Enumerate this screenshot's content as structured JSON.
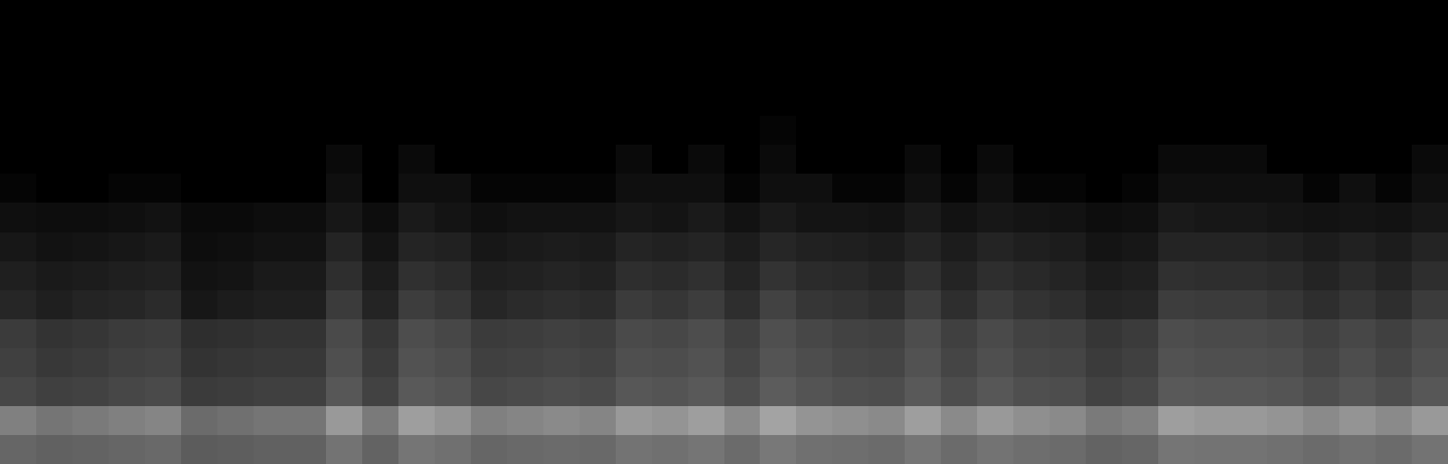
{
  "chart_data": {
    "type": "heatmap",
    "tick_labels": false,
    "color": "#ffffff",
    "color_range": [
      0,
      1
    ],
    "cells": [
      [
        0,
        0,
        0,
        0,
        0,
        0,
        0,
        0,
        0,
        0,
        0,
        0,
        0,
        0,
        0,
        0,
        0,
        0,
        0,
        0,
        0,
        0,
        0,
        0,
        0,
        0,
        0,
        0,
        0,
        0,
        0,
        0,
        0,
        0,
        0,
        0,
        0,
        0,
        0,
        0
      ],
      [
        0,
        0,
        0,
        0,
        0,
        0,
        0,
        0,
        0,
        0,
        0,
        0,
        0,
        0,
        0,
        0,
        0,
        0,
        0,
        0,
        0,
        0,
        0,
        0,
        0,
        0,
        0,
        0,
        0,
        0,
        0,
        0,
        0,
        0,
        0,
        0,
        0,
        0,
        0,
        0
      ],
      [
        0,
        0,
        0,
        0,
        0,
        0,
        0,
        0,
        0,
        0,
        0,
        0,
        0,
        0,
        0,
        0,
        0,
        0,
        0,
        0,
        0,
        0,
        0,
        0,
        0,
        0,
        0,
        0,
        0,
        0,
        0,
        0,
        0,
        0,
        0,
        0,
        0,
        0,
        0,
        0
      ],
      [
        0,
        0,
        0,
        0,
        0,
        0,
        0,
        0,
        0,
        0,
        0,
        0,
        0,
        0,
        0,
        0,
        0,
        0,
        0,
        0,
        0,
        0,
        0,
        0,
        0,
        0,
        0,
        0,
        0,
        0,
        0,
        0,
        0,
        0,
        0,
        0,
        0,
        0,
        0,
        0
      ],
      [
        0,
        0,
        0,
        0,
        0,
        0,
        0,
        0,
        0,
        0,
        0,
        0,
        0,
        0,
        0,
        0,
        0,
        0,
        0,
        0,
        0,
        0.02,
        0,
        0,
        0,
        0,
        0,
        0,
        0,
        0,
        0,
        0,
        0,
        0,
        0,
        0,
        0,
        0,
        0,
        0
      ],
      [
        0,
        0,
        0,
        0,
        0,
        0,
        0,
        0,
        0,
        0.04,
        0,
        0.04,
        0,
        0,
        0,
        0,
        0,
        0.04,
        0,
        0.04,
        0,
        0.04,
        0,
        0,
        0,
        0.04,
        0,
        0.04,
        0,
        0,
        0,
        0,
        0.04,
        0.04,
        0.04,
        0,
        0,
        0,
        0,
        0.04
      ],
      [
        0.02,
        0,
        0,
        0.02,
        0.02,
        0,
        0,
        0,
        0,
        0.06,
        0,
        0.06,
        0.06,
        0.02,
        0.02,
        0.02,
        0.02,
        0.06,
        0.06,
        0.06,
        0.02,
        0.06,
        0.06,
        0.02,
        0.02,
        0.06,
        0.02,
        0.06,
        0.02,
        0.02,
        0,
        0.02,
        0.06,
        0.06,
        0.06,
        0.06,
        0.02,
        0.06,
        0.02,
        0.06
      ],
      [
        0.06,
        0.05,
        0.05,
        0.06,
        0.07,
        0.04,
        0.04,
        0.05,
        0.05,
        0.09,
        0.05,
        0.1,
        0.08,
        0.06,
        0.07,
        0.07,
        0.07,
        0.09,
        0.08,
        0.1,
        0.07,
        0.1,
        0.08,
        0.08,
        0.07,
        0.1,
        0.07,
        0.09,
        0.08,
        0.07,
        0.05,
        0.06,
        0.1,
        0.09,
        0.09,
        0.08,
        0.07,
        0.08,
        0.07,
        0.09
      ],
      [
        0.09,
        0.07,
        0.08,
        0.09,
        0.1,
        0.05,
        0.06,
        0.07,
        0.07,
        0.14,
        0.08,
        0.14,
        0.13,
        0.09,
        0.1,
        0.11,
        0.1,
        0.14,
        0.13,
        0.14,
        0.11,
        0.15,
        0.13,
        0.12,
        0.11,
        0.14,
        0.11,
        0.14,
        0.12,
        0.11,
        0.08,
        0.09,
        0.14,
        0.14,
        0.14,
        0.13,
        0.11,
        0.13,
        0.11,
        0.14
      ],
      [
        0.12,
        0.1,
        0.11,
        0.12,
        0.13,
        0.07,
        0.08,
        0.1,
        0.1,
        0.18,
        0.11,
        0.19,
        0.17,
        0.12,
        0.13,
        0.14,
        0.13,
        0.18,
        0.17,
        0.19,
        0.14,
        0.2,
        0.17,
        0.16,
        0.14,
        0.19,
        0.14,
        0.18,
        0.16,
        0.14,
        0.11,
        0.12,
        0.19,
        0.18,
        0.18,
        0.17,
        0.14,
        0.17,
        0.14,
        0.18
      ],
      [
        0.15,
        0.12,
        0.14,
        0.15,
        0.17,
        0.09,
        0.11,
        0.12,
        0.12,
        0.23,
        0.14,
        0.24,
        0.21,
        0.15,
        0.17,
        0.18,
        0.17,
        0.23,
        0.21,
        0.24,
        0.18,
        0.26,
        0.21,
        0.2,
        0.18,
        0.24,
        0.18,
        0.23,
        0.2,
        0.18,
        0.14,
        0.15,
        0.24,
        0.23,
        0.23,
        0.21,
        0.18,
        0.21,
        0.18,
        0.23
      ],
      [
        0.23,
        0.2,
        0.21,
        0.23,
        0.24,
        0.18,
        0.19,
        0.2,
        0.2,
        0.29,
        0.21,
        0.3,
        0.28,
        0.23,
        0.24,
        0.25,
        0.24,
        0.29,
        0.28,
        0.3,
        0.25,
        0.31,
        0.28,
        0.26,
        0.25,
        0.3,
        0.25,
        0.29,
        0.26,
        0.25,
        0.21,
        0.23,
        0.3,
        0.29,
        0.29,
        0.28,
        0.25,
        0.28,
        0.25,
        0.29
      ],
      [
        0.25,
        0.22,
        0.23,
        0.25,
        0.26,
        0.2,
        0.21,
        0.22,
        0.22,
        0.31,
        0.23,
        0.32,
        0.3,
        0.25,
        0.26,
        0.27,
        0.26,
        0.31,
        0.3,
        0.32,
        0.27,
        0.33,
        0.3,
        0.28,
        0.27,
        0.32,
        0.27,
        0.31,
        0.28,
        0.27,
        0.23,
        0.25,
        0.32,
        0.31,
        0.31,
        0.3,
        0.27,
        0.3,
        0.27,
        0.31
      ],
      [
        0.28,
        0.25,
        0.26,
        0.28,
        0.29,
        0.23,
        0.24,
        0.25,
        0.25,
        0.34,
        0.26,
        0.35,
        0.33,
        0.28,
        0.29,
        0.3,
        0.29,
        0.34,
        0.33,
        0.35,
        0.3,
        0.36,
        0.33,
        0.31,
        0.3,
        0.35,
        0.3,
        0.34,
        0.31,
        0.3,
        0.26,
        0.28,
        0.35,
        0.34,
        0.34,
        0.33,
        0.3,
        0.33,
        0.3,
        0.34
      ],
      [
        0.5,
        0.46,
        0.48,
        0.5,
        0.52,
        0.42,
        0.44,
        0.46,
        0.46,
        0.6,
        0.48,
        0.62,
        0.58,
        0.5,
        0.52,
        0.54,
        0.52,
        0.6,
        0.58,
        0.62,
        0.54,
        0.64,
        0.58,
        0.56,
        0.54,
        0.62,
        0.54,
        0.6,
        0.56,
        0.54,
        0.48,
        0.5,
        0.62,
        0.6,
        0.6,
        0.58,
        0.54,
        0.58,
        0.54,
        0.6
      ],
      [
        0.4,
        0.38,
        0.39,
        0.4,
        0.41,
        0.36,
        0.37,
        0.38,
        0.38,
        0.45,
        0.39,
        0.46,
        0.44,
        0.4,
        0.41,
        0.42,
        0.41,
        0.45,
        0.44,
        0.46,
        0.42,
        0.47,
        0.44,
        0.43,
        0.42,
        0.46,
        0.42,
        0.45,
        0.43,
        0.42,
        0.39,
        0.4,
        0.46,
        0.45,
        0.45,
        0.44,
        0.42,
        0.44,
        0.42,
        0.45
      ]
    ]
  }
}
